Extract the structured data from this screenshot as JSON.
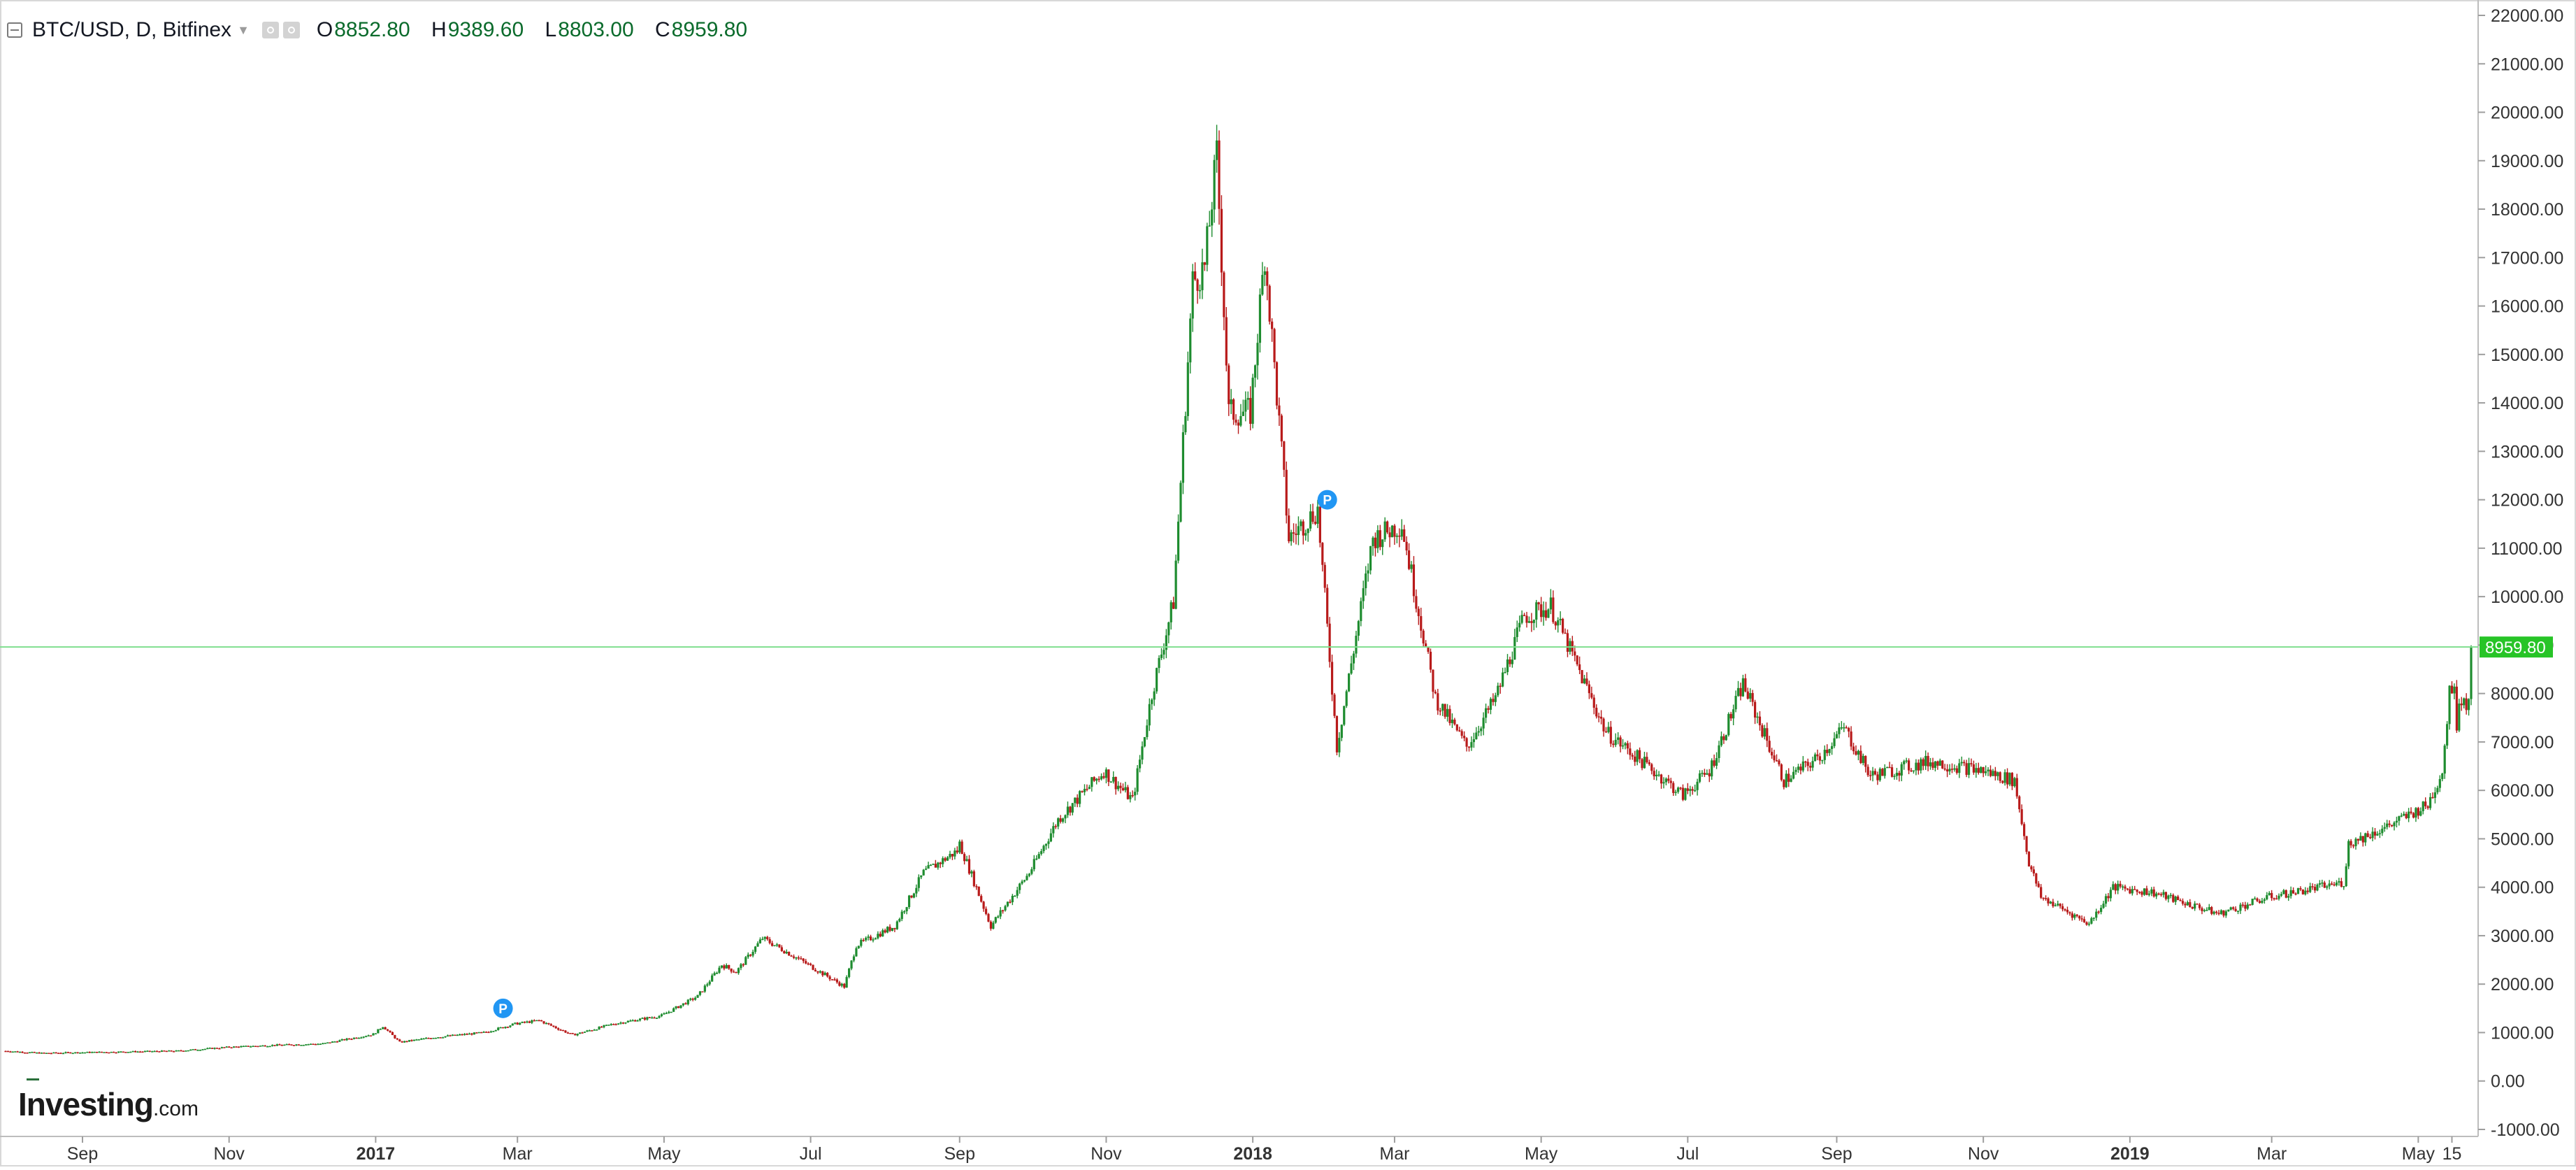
{
  "legend": {
    "symbol": "BTC/USD, D, Bitfinex",
    "open_label": "O",
    "open": "8852.80",
    "high_label": "H",
    "high": "9389.60",
    "low_label": "L",
    "low": "8803.00",
    "close_label": "C",
    "close": "8959.80"
  },
  "logo": {
    "name": "Investing",
    "suffix": ".com"
  },
  "colors": {
    "up": "#1e8c2f",
    "down": "#b81a1a",
    "price_line": "#7fdf8f",
    "price_badge": "#27c427",
    "axis_text": "#333333",
    "pin": "#2196f3"
  },
  "chart_data": {
    "type": "candlestick",
    "title": "BTC/USD, D, Bitfinex",
    "ylim": [
      -1000,
      22000
    ],
    "y_ticks": [
      "22000.00",
      "21000.00",
      "20000.00",
      "19000.00",
      "18000.00",
      "17000.00",
      "16000.00",
      "15000.00",
      "14000.00",
      "13000.00",
      "12000.00",
      "11000.00",
      "10000.00",
      "9000.00",
      "8000.00",
      "7000.00",
      "6000.00",
      "5000.00",
      "4000.00",
      "3000.00",
      "2000.00",
      "1000.00",
      "0.00",
      "-1000.00"
    ],
    "y_tick_values": [
      22000,
      21000,
      20000,
      19000,
      18000,
      17000,
      16000,
      15000,
      14000,
      13000,
      12000,
      11000,
      10000,
      9000,
      8000,
      7000,
      6000,
      5000,
      4000,
      3000,
      2000,
      1000,
      0,
      -1000
    ],
    "x_range": [
      "2016-07-31",
      "2019-05-23"
    ],
    "x_ticks": [
      {
        "label": "Sep",
        "date": "2016-09-01"
      },
      {
        "label": "Nov",
        "date": "2016-11-01"
      },
      {
        "label": "2017",
        "date": "2017-01-01",
        "bold": true
      },
      {
        "label": "Mar",
        "date": "2017-03-01"
      },
      {
        "label": "May",
        "date": "2017-05-01"
      },
      {
        "label": "Jul",
        "date": "2017-07-01"
      },
      {
        "label": "Sep",
        "date": "2017-09-01"
      },
      {
        "label": "Nov",
        "date": "2017-11-01"
      },
      {
        "label": "2018",
        "date": "2018-01-01",
        "bold": true
      },
      {
        "label": "Mar",
        "date": "2018-03-01"
      },
      {
        "label": "May",
        "date": "2018-05-01"
      },
      {
        "label": "Jul",
        "date": "2018-07-01"
      },
      {
        "label": "Sep",
        "date": "2018-09-01"
      },
      {
        "label": "Nov",
        "date": "2018-11-01"
      },
      {
        "label": "2019",
        "date": "2019-01-01",
        "bold": true
      },
      {
        "label": "Mar",
        "date": "2019-03-01"
      },
      {
        "label": "May",
        "date": "2019-05-01"
      },
      {
        "label": "15",
        "date": "2019-05-15"
      }
    ],
    "last_price": 8959.8,
    "last_price_label": "8959.80",
    "close_path": [
      [
        "2016-07-31",
        620
      ],
      [
        "2016-08-15",
        575
      ],
      [
        "2016-09-01",
        590
      ],
      [
        "2016-09-20",
        605
      ],
      [
        "2016-10-10",
        620
      ],
      [
        "2016-11-01",
        700
      ],
      [
        "2016-11-20",
        740
      ],
      [
        "2016-12-10",
        770
      ],
      [
        "2016-12-31",
        965
      ],
      [
        "2017-01-04",
        1130
      ],
      [
        "2017-01-11",
        800
      ],
      [
        "2017-01-25",
        900
      ],
      [
        "2017-02-15",
        1000
      ],
      [
        "2017-02-28",
        1180
      ],
      [
        "2017-03-10",
        1250
      ],
      [
        "2017-03-24",
        950
      ],
      [
        "2017-04-10",
        1180
      ],
      [
        "2017-04-30",
        1350
      ],
      [
        "2017-05-15",
        1750
      ],
      [
        "2017-05-25",
        2400
      ],
      [
        "2017-05-31",
        2250
      ],
      [
        "2017-06-11",
        2950
      ],
      [
        "2017-06-25",
        2550
      ],
      [
        "2017-07-15",
        1950
      ],
      [
        "2017-07-20",
        2800
      ],
      [
        "2017-08-05",
        3200
      ],
      [
        "2017-08-17",
        4300
      ],
      [
        "2017-08-31",
        4750
      ],
      [
        "2017-09-01",
        4900
      ],
      [
        "2017-09-14",
        3200
      ],
      [
        "2017-09-30",
        4300
      ],
      [
        "2017-10-12",
        5400
      ],
      [
        "2017-10-31",
        6400
      ],
      [
        "2017-11-12",
        5800
      ],
      [
        "2017-11-20",
        8000
      ],
      [
        "2017-11-29",
        9900
      ],
      [
        "2017-12-07",
        16500
      ],
      [
        "2017-12-12",
        16800
      ],
      [
        "2017-12-17",
        19100
      ],
      [
        "2017-12-22",
        13800
      ],
      [
        "2017-12-31",
        13800
      ],
      [
        "2018-01-06",
        17100
      ],
      [
        "2018-01-16",
        11200
      ],
      [
        "2018-01-28",
        11800
      ],
      [
        "2018-02-05",
        6900
      ],
      [
        "2018-02-20",
        11200
      ],
      [
        "2018-03-04",
        11500
      ],
      [
        "2018-03-18",
        7900
      ],
      [
        "2018-03-31",
        6900
      ],
      [
        "2018-04-12",
        7900
      ],
      [
        "2018-04-24",
        9600
      ],
      [
        "2018-05-05",
        9800
      ],
      [
        "2018-05-28",
        7200
      ],
      [
        "2018-06-12",
        6600
      ],
      [
        "2018-06-29",
        5900
      ],
      [
        "2018-07-10",
        6400
      ],
      [
        "2018-07-24",
        8200
      ],
      [
        "2018-08-10",
        6200
      ],
      [
        "2018-08-25",
        6700
      ],
      [
        "2018-09-04",
        7300
      ],
      [
        "2018-09-15",
        6300
      ],
      [
        "2018-10-10",
        6600
      ],
      [
        "2018-11-01",
        6400
      ],
      [
        "2018-11-14",
        6200
      ],
      [
        "2018-11-20",
        4500
      ],
      [
        "2018-11-25",
        3800
      ],
      [
        "2018-12-15",
        3250
      ],
      [
        "2018-12-25",
        4000
      ],
      [
        "2019-01-10",
        3900
      ],
      [
        "2019-02-07",
        3450
      ],
      [
        "2019-02-28",
        3800
      ],
      [
        "2019-03-31",
        4100
      ],
      [
        "2019-04-02",
        4900
      ],
      [
        "2019-04-20",
        5300
      ],
      [
        "2019-05-05",
        5700
      ],
      [
        "2019-05-11",
        6400
      ],
      [
        "2019-05-14",
        8000
      ],
      [
        "2019-05-16",
        8300
      ],
      [
        "2019-05-17",
        7300
      ],
      [
        "2019-05-18",
        7900
      ],
      [
        "2019-05-22",
        7800
      ],
      [
        "2019-05-23",
        8959.8
      ]
    ],
    "pins": [
      {
        "date": "2017-02-23",
        "value": 1500,
        "label": "P"
      },
      {
        "date": "2018-02-01",
        "value": 12000,
        "label": "P"
      }
    ]
  }
}
